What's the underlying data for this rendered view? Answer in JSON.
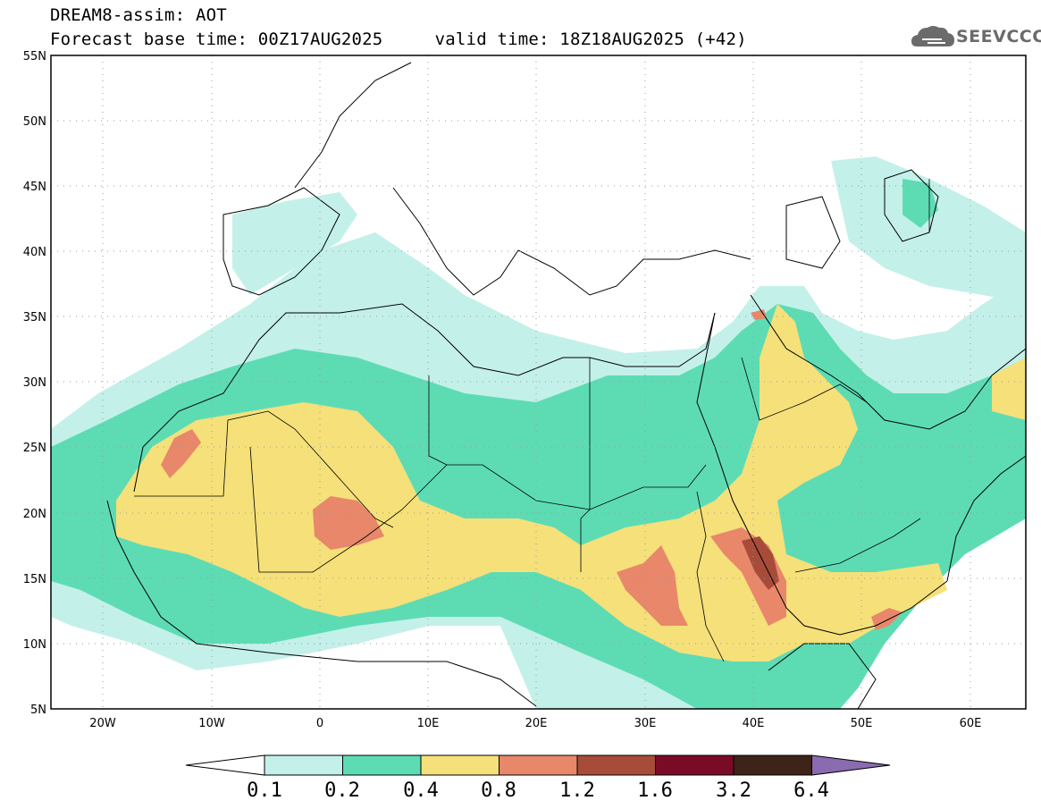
{
  "header": {
    "title": "DREAM8-assim: AOT",
    "subtitle": "Forecast base time: 00Z17AUG2025     valid time: 18Z18AUG2025 (+42)"
  },
  "logo": {
    "text": "SEEVCCC",
    "icon": "cloud-icon"
  },
  "map": {
    "lat_labels": [
      "55N",
      "50N",
      "45N",
      "40N",
      "35N",
      "30N",
      "25N",
      "20N",
      "15N",
      "10N",
      "5N"
    ],
    "lon_labels": [
      "20W",
      "10W",
      "0",
      "10E",
      "20E",
      "30E",
      "40E",
      "50E",
      "60E"
    ],
    "lat_range": [
      5,
      55
    ],
    "lon_range": [
      -25,
      65
    ],
    "grid": "dotted"
  },
  "colorbar": {
    "labels": [
      "0.1",
      "0.2",
      "0.4",
      "0.8",
      "1.2",
      "1.6",
      "3.2",
      "6.4"
    ],
    "colors": [
      "#ffffff",
      "#c4f0ea",
      "#5ddcb4",
      "#f5e07a",
      "#e8876a",
      "#a84c3a",
      "#7a0b26",
      "#3d2318",
      "#8b6bb0"
    ]
  },
  "chart_data": {
    "type": "heatmap",
    "title": "DREAM8-assim: AOT",
    "variable": "AOT",
    "levels": [
      0.1,
      0.2,
      0.4,
      0.8,
      1.2,
      1.6,
      3.2,
      6.4
    ],
    "level_colors": [
      "#c4f0ea",
      "#5ddcb4",
      "#f5e07a",
      "#e8876a",
      "#a84c3a",
      "#7a0b26",
      "#3d2318",
      "#8b6bb0"
    ],
    "xlim": [
      -25,
      65
    ],
    "ylim": [
      5,
      55
    ]
  }
}
